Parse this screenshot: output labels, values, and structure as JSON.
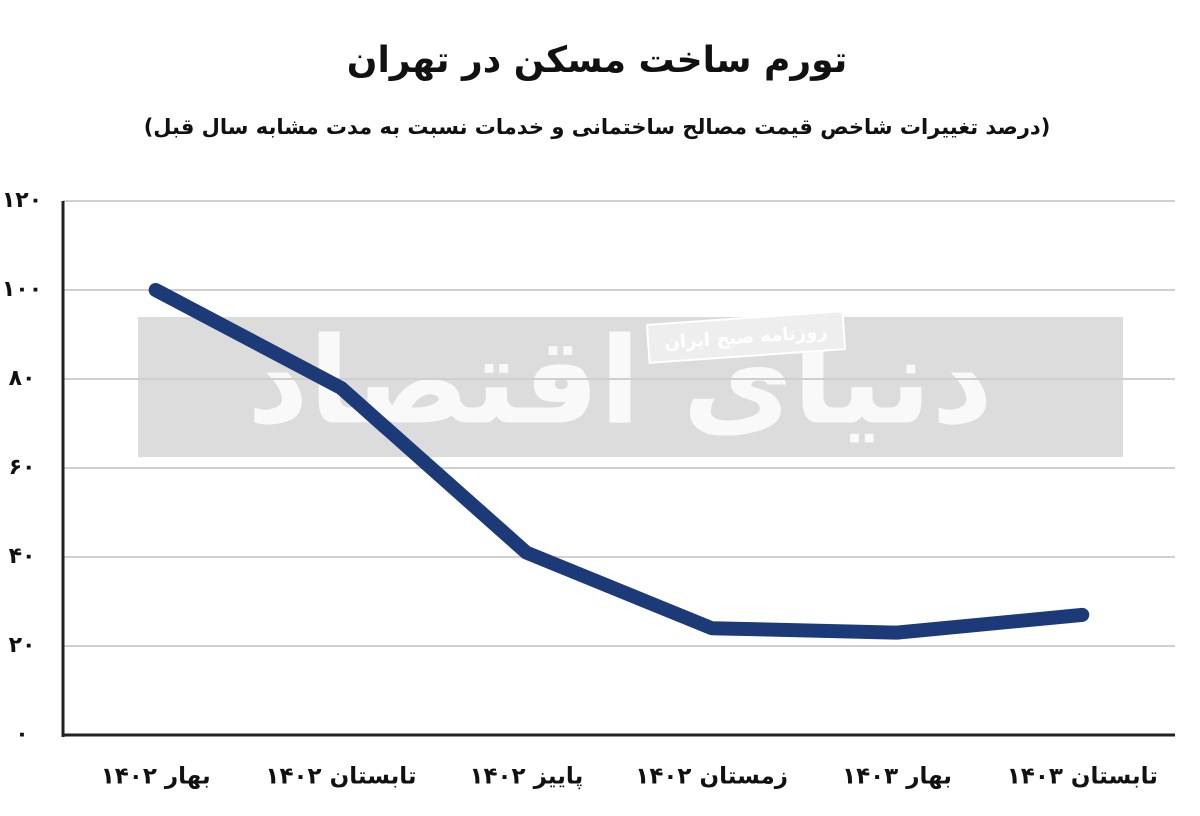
{
  "chart_data": {
    "type": "line",
    "title": "تورم ساخت مسکن در تهران",
    "subtitle": "(درصد تغییرات شاخص قیمت مصالح ساختمانی و خدمات نسبت به مدت مشابه سال قبل)",
    "watermark": [
      "دنیای اقتصاد",
      "روزنامه صبح ایران"
    ],
    "categories": [
      "بهار ۱۴۰۲",
      "تابستان ۱۴۰۲",
      "پاییز ۱۴۰۲",
      "زمستان ۱۴۰۲",
      "بهار ۱۴۰۳",
      "تابستان ۱۴۰۳"
    ],
    "series": [
      {
        "name": "تورم",
        "color": "#1c3a78",
        "values": [
          100,
          78,
          41,
          24,
          23,
          27
        ]
      }
    ],
    "ylim": [
      0,
      120
    ],
    "yticks": [
      {
        "value": 0,
        "label": "۰"
      },
      {
        "value": 20,
        "label": "۲۰"
      },
      {
        "value": 40,
        "label": "۴۰"
      },
      {
        "value": 60,
        "label": "۶۰"
      },
      {
        "value": 80,
        "label": "۸۰"
      },
      {
        "value": 100,
        "label": "۱۰۰"
      },
      {
        "value": 120,
        "label": "۱۲۰"
      }
    ],
    "grid": true
  }
}
